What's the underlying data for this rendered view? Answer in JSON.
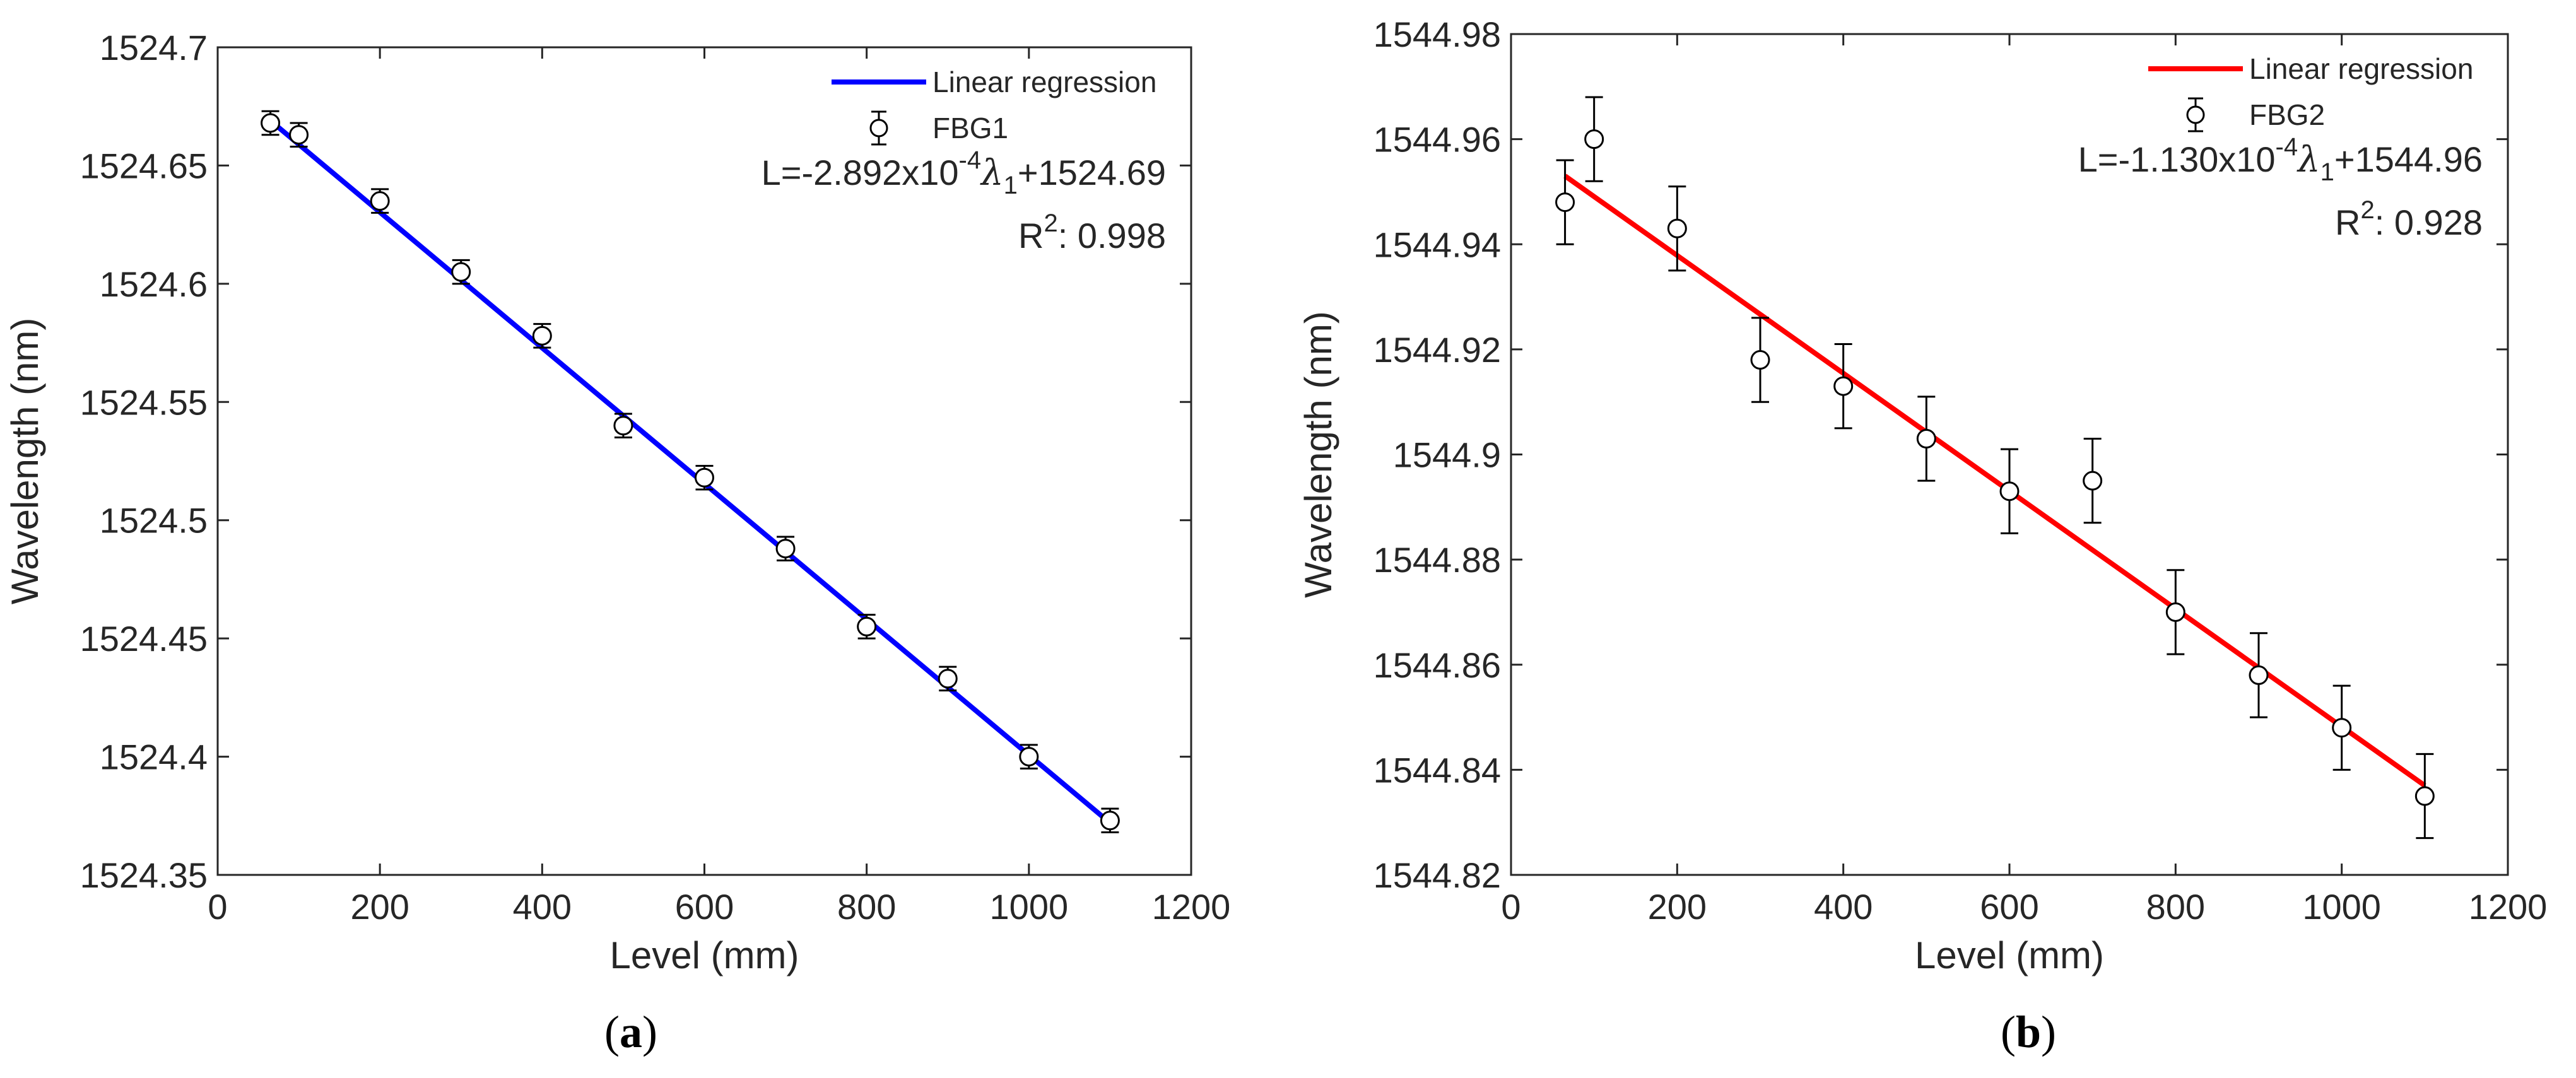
{
  "chart_data": [
    {
      "type": "scatter",
      "panel_label": "a",
      "xlabel": "Level (mm)",
      "ylabel": "Wavelength (nm)",
      "xlim": [
        0,
        1200
      ],
      "ylim": [
        1524.35,
        1524.7
      ],
      "xticks": [
        0,
        200,
        400,
        600,
        800,
        1000,
        1200
      ],
      "yticks": [
        1524.35,
        1524.4,
        1524.45,
        1524.5,
        1524.55,
        1524.6,
        1524.65,
        1524.7
      ],
      "xtick_labels": [
        "0",
        "200",
        "400",
        "600",
        "800",
        "1000",
        "1200"
      ],
      "ytick_labels": [
        "1524.35",
        "1524.4",
        "1524.45",
        "1524.5",
        "1524.55",
        "1524.6",
        "1524.65",
        "1524.7"
      ],
      "series": [
        {
          "name": "FBG1",
          "x": [
            65,
            100,
            200,
            300,
            400,
            500,
            600,
            700,
            800,
            900,
            1000,
            1100
          ],
          "y": [
            1524.668,
            1524.663,
            1524.635,
            1524.605,
            1524.578,
            1524.54,
            1524.518,
            1524.488,
            1524.455,
            1524.433,
            1524.4,
            1524.373
          ],
          "error": 0.005
        }
      ],
      "fit": {
        "name": "Linear regression",
        "x": [
          65,
          1100
        ],
        "y": [
          1524.669,
          1524.372
        ],
        "color": "#0000ff"
      },
      "legend": {
        "line_label": "Linear regression",
        "marker_label": "FBG1",
        "position": "top-right"
      },
      "equation": {
        "prefix": "L=-2.892x10",
        "exp": "-4",
        "lam": "λ",
        "sub": "1",
        "suffix": "+1524.69"
      },
      "r2": {
        "label": "R",
        "exp": "2",
        "value": ": 0.998"
      }
    },
    {
      "type": "scatter",
      "panel_label": "b",
      "xlabel": "Level (mm)",
      "ylabel": "Wavelength (nm)",
      "xlim": [
        0,
        1200
      ],
      "ylim": [
        1544.82,
        1544.98
      ],
      "xticks": [
        0,
        200,
        400,
        600,
        800,
        1000,
        1200
      ],
      "yticks": [
        1544.82,
        1544.84,
        1544.86,
        1544.88,
        1544.9,
        1544.92,
        1544.94,
        1544.96,
        1544.98
      ],
      "xtick_labels": [
        "0",
        "200",
        "400",
        "600",
        "800",
        "1000",
        "1200"
      ],
      "ytick_labels": [
        "1544.82",
        "1544.84",
        "1544.86",
        "1544.88",
        "1544.9",
        "1544.92",
        "1544.94",
        "1544.96",
        "1544.98"
      ],
      "series": [
        {
          "name": "FBG2",
          "x": [
            65,
            100,
            200,
            300,
            400,
            500,
            600,
            700,
            800,
            900,
            1000,
            1100
          ],
          "y": [
            1544.948,
            1544.96,
            1544.943,
            1544.918,
            1544.913,
            1544.903,
            1544.893,
            1544.895,
            1544.87,
            1544.858,
            1544.848,
            1544.835
          ],
          "error": 0.008
        }
      ],
      "fit": {
        "name": "Linear regression",
        "x": [
          65,
          1100
        ],
        "y": [
          1544.953,
          1544.837
        ],
        "color": "#ff0000"
      },
      "legend": {
        "line_label": "Linear regression",
        "marker_label": "FBG2",
        "position": "top-right"
      },
      "equation": {
        "prefix": "L=-1.130x10",
        "exp": "-4",
        "lam": "λ",
        "sub": "1",
        "suffix": "+1544.96"
      },
      "r2": {
        "label": "R",
        "exp": "2",
        "value": ": 0.928"
      }
    }
  ]
}
